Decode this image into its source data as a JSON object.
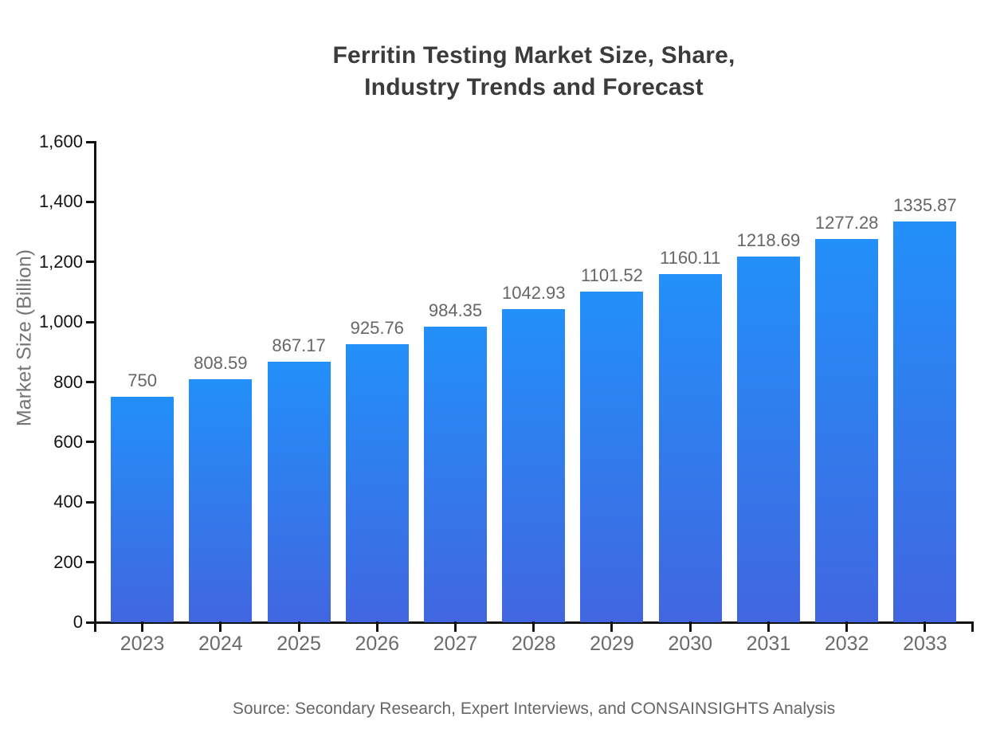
{
  "chart_data": {
    "type": "bar",
    "title_line1": "Ferritin Testing Market Size, Share,",
    "title_line2": "Industry Trends and Forecast",
    "ylabel": "Market Size (Billion)",
    "xlabel": "",
    "categories": [
      "2023",
      "2024",
      "2025",
      "2026",
      "2027",
      "2028",
      "2029",
      "2030",
      "2031",
      "2032",
      "2033"
    ],
    "values": [
      750,
      808.59,
      867.17,
      925.76,
      984.35,
      1042.93,
      1101.52,
      1160.11,
      1218.69,
      1277.28,
      1335.87
    ],
    "value_labels": [
      "750",
      "808.59",
      "867.17",
      "925.76",
      "984.35",
      "1042.93",
      "1101.52",
      "1160.11",
      "1218.69",
      "1277.28",
      "1335.87"
    ],
    "ylim": [
      0,
      1600
    ],
    "ytick_values": [
      0,
      200,
      400,
      600,
      800,
      1000,
      1200,
      1400,
      1600
    ],
    "ytick_labels": [
      "0",
      "200",
      "400",
      "600",
      "800",
      "1,000",
      "1,200",
      "1,400",
      "1,600"
    ],
    "grid": false,
    "legend_position": "none",
    "source": "Source: Secondary Research, Expert Interviews, and CONSAINSIGHTS Analysis",
    "colors": {
      "bar_gradient_top": "#2290f8",
      "bar_gradient_bottom": "#4166e0",
      "axis": "#111111",
      "title": "#3b3b3b",
      "y_tick_label": "#141414",
      "value_label": "#666666",
      "category_label": "#6b6b6b",
      "y_axis_title": "#757575",
      "source": "#666666",
      "background": "#ffffff"
    }
  }
}
